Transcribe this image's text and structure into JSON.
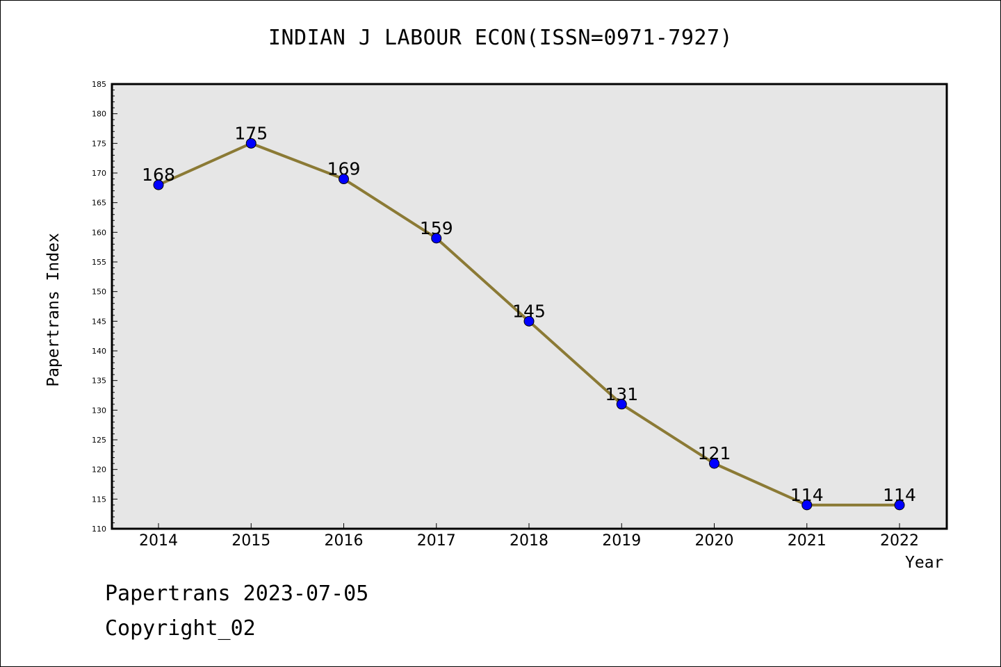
{
  "chart_data": {
    "type": "line",
    "title": "INDIAN J LABOUR ECON(ISSN=0971-7927)",
    "xlabel": "Year",
    "ylabel": "Papertrans Index",
    "categories": [
      "2014",
      "2015",
      "2016",
      "2017",
      "2018",
      "2019",
      "2020",
      "2021",
      "2022"
    ],
    "series": [
      {
        "values": [
          168,
          175,
          169,
          159,
          145,
          131,
          121,
          114,
          114
        ]
      }
    ],
    "ylim": [
      110,
      185
    ],
    "ytick_step": 5,
    "grid": false,
    "data_labels": true,
    "colors": {
      "line": "#8b7a35",
      "marker": "#0000ff",
      "plot_background": "#e6e6e6"
    }
  },
  "footer": {
    "date_text": "Papertrans 2023-07-05",
    "copyright_text": "Copyright_02"
  }
}
